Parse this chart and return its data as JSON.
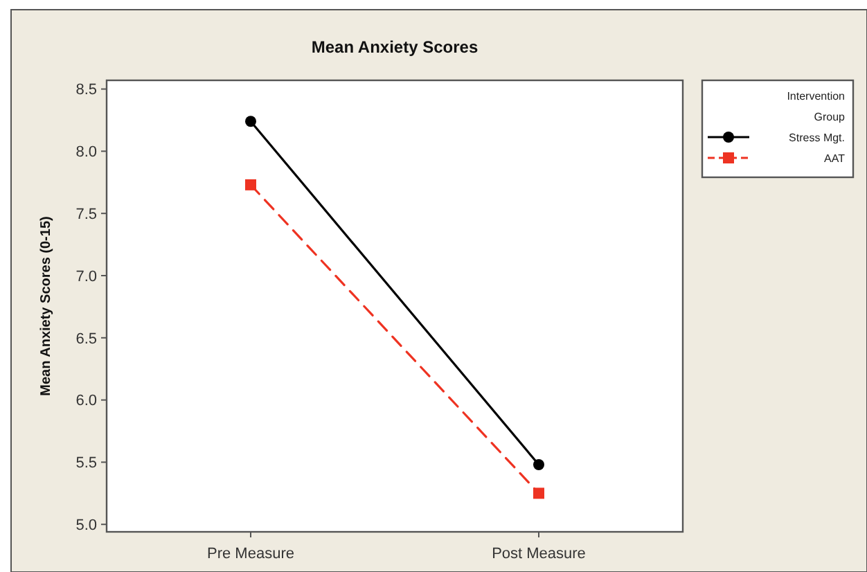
{
  "chart_data": {
    "type": "line",
    "title": "Mean Anxiety Scores",
    "ylabel": "Mean Anxiety Scores (0-15)",
    "categories": [
      "Pre Measure",
      "Post Measure"
    ],
    "series": [
      {
        "name": "Stress Mgt.",
        "color": "#000000",
        "values": [
          8.24,
          5.48
        ],
        "marker": "circle",
        "line_style": "solid"
      },
      {
        "name": "AAT",
        "color": "#ee3322",
        "values": [
          7.73,
          5.25
        ],
        "marker": "square",
        "line_style": "dashed"
      }
    ],
    "ylim": [
      4.94,
      8.57
    ],
    "yticks": [
      {
        "value": 5,
        "label": "5.0"
      },
      5.5,
      {
        "value": 6,
        "label": "6.0"
      },
      6.5,
      {
        "value": 7,
        "label": "7.0"
      },
      7.5,
      {
        "value": 8,
        "label": "8.0"
      },
      8.5
    ],
    "legend": "right",
    "legend_title": "Intervention Group",
    "grid": false
  }
}
